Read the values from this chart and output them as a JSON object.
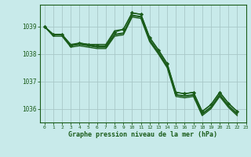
{
  "bg_color": "#c8eaea",
  "grid_color": "#a8c8c8",
  "line_color": "#1a5c1a",
  "xlabel": "Graphe pression niveau de la mer (hPa)",
  "xlabel_color": "#1a5c1a",
  "ylim": [
    1035.5,
    1039.8
  ],
  "xlim": [
    -0.5,
    23
  ],
  "yticks": [
    1036,
    1037,
    1038,
    1039
  ],
  "xticks": [
    0,
    1,
    2,
    3,
    4,
    5,
    6,
    7,
    8,
    9,
    10,
    11,
    12,
    13,
    14,
    15,
    16,
    17,
    18,
    19,
    20,
    21,
    22,
    23
  ],
  "series": [
    {
      "y": [
        1039.0,
        1038.7,
        1038.7,
        1038.3,
        1038.4,
        1038.35,
        1038.3,
        1038.3,
        1038.8,
        1038.9,
        1039.5,
        1039.45,
        1038.6,
        1038.15,
        1037.65,
        1036.6,
        1036.55,
        1036.6,
        1035.9,
        1036.15,
        1036.6,
        1036.2,
        1035.9
      ],
      "marker": true,
      "lw": 1.0
    },
    {
      "y": [
        1039.0,
        1038.7,
        1038.7,
        1038.3,
        1038.35,
        1038.3,
        1038.25,
        1038.25,
        1038.7,
        1038.75,
        1039.4,
        1039.35,
        1038.5,
        1038.05,
        1037.55,
        1036.5,
        1036.45,
        1036.5,
        1035.8,
        1036.05,
        1036.5,
        1036.1,
        1035.8
      ],
      "marker": false,
      "lw": 1.0
    },
    {
      "y": [
        1039.0,
        1038.65,
        1038.65,
        1038.25,
        1038.3,
        1038.25,
        1038.2,
        1038.2,
        1038.65,
        1038.7,
        1039.35,
        1039.3,
        1038.45,
        1038.0,
        1037.5,
        1036.45,
        1036.4,
        1036.45,
        1035.75,
        1036.0,
        1036.45,
        1036.05,
        1035.75
      ],
      "marker": false,
      "lw": 1.0
    },
    {
      "y": [
        1039.0,
        1038.7,
        1038.7,
        1038.35,
        1038.4,
        1038.35,
        1038.35,
        1038.35,
        1038.85,
        1038.9,
        1039.5,
        1039.45,
        1038.6,
        1038.15,
        1037.65,
        1036.6,
        1036.55,
        1036.6,
        1035.9,
        1036.15,
        1036.6,
        1036.2,
        1035.9
      ],
      "marker": false,
      "lw": 1.0
    },
    {
      "y": [
        1039.0,
        1038.72,
        1038.72,
        1038.32,
        1038.37,
        1038.32,
        1038.27,
        1038.27,
        1038.72,
        1038.77,
        1039.42,
        1039.37,
        1038.52,
        1038.07,
        1037.57,
        1036.52,
        1036.47,
        1036.52,
        1035.82,
        1036.07,
        1036.52,
        1036.12,
        1035.82
      ],
      "marker": false,
      "lw": 1.0
    }
  ],
  "figsize": [
    3.2,
    2.0
  ],
  "dpi": 100
}
